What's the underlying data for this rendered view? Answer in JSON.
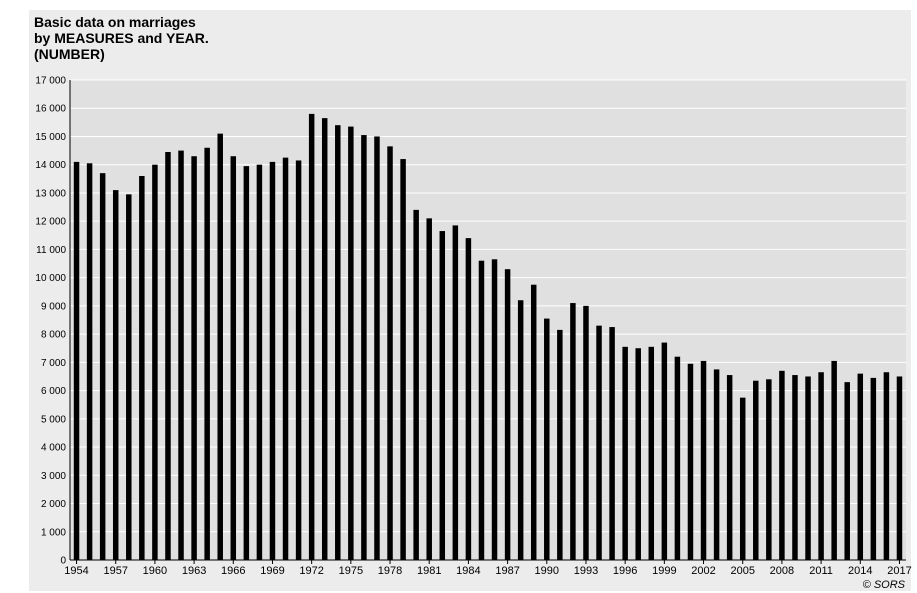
{
  "title_lines": [
    "Basic data on marriages",
    "by MEASURES and YEAR.",
    "(NUMBER)"
  ],
  "credit": "© SORS",
  "chart_data": {
    "type": "bar",
    "title": "Basic data on marriages by MEASURES and YEAR. (NUMBER)",
    "xlabel": "",
    "ylabel": "",
    "ylim": [
      0,
      17000
    ],
    "y_ticks": [
      0,
      1000,
      2000,
      3000,
      4000,
      5000,
      6000,
      7000,
      8000,
      9000,
      10000,
      11000,
      12000,
      13000,
      14000,
      15000,
      16000,
      17000
    ],
    "y_tick_labels": [
      "0",
      "1 000",
      "2 000",
      "3 000",
      "4 000",
      "5 000",
      "6 000",
      "7 000",
      "8 000",
      "9 000",
      "10 000",
      "11 000",
      "12 000",
      "13 000",
      "14 000",
      "15 000",
      "16 000",
      "17 000"
    ],
    "x_tick_labels": [
      "1954",
      "1957",
      "1960",
      "1963",
      "1966",
      "1969",
      "1972",
      "1975",
      "1978",
      "1981",
      "1984",
      "1987",
      "1990",
      "1993",
      "1996",
      "1999",
      "2002",
      "2005",
      "2008",
      "2011",
      "2014",
      "2017"
    ],
    "grid": true,
    "bar_color": "#000000",
    "plot_background": "#e0e0e0",
    "categories": [
      "1954",
      "1955",
      "1956",
      "1957",
      "1958",
      "1959",
      "1960",
      "1961",
      "1962",
      "1963",
      "1964",
      "1965",
      "1966",
      "1967",
      "1968",
      "1969",
      "1970",
      "1971",
      "1972",
      "1973",
      "1974",
      "1975",
      "1976",
      "1977",
      "1978",
      "1979",
      "1980",
      "1981",
      "1982",
      "1983",
      "1984",
      "1985",
      "1986",
      "1987",
      "1988",
      "1989",
      "1990",
      "1991",
      "1992",
      "1993",
      "1994",
      "1995",
      "1996",
      "1997",
      "1998",
      "1999",
      "2000",
      "2001",
      "2002",
      "2003",
      "2004",
      "2005",
      "2006",
      "2007",
      "2008",
      "2009",
      "2010",
      "2011",
      "2012",
      "2013",
      "2014",
      "2015",
      "2016",
      "2017"
    ],
    "values": [
      14100,
      14050,
      13700,
      13100,
      12950,
      13600,
      14000,
      14450,
      14500,
      14300,
      14600,
      15100,
      14300,
      13950,
      14000,
      14100,
      14250,
      14150,
      15800,
      15650,
      15400,
      15350,
      15050,
      15000,
      14650,
      14200,
      12400,
      12100,
      11650,
      11850,
      11400,
      10600,
      10650,
      10300,
      9200,
      9750,
      8550,
      8150,
      9100,
      9000,
      8300,
      8250,
      7550,
      7500,
      7550,
      7700,
      7200,
      6950,
      7050,
      6750,
      6550,
      5750,
      6350,
      6400,
      6700,
      6550,
      6500,
      6650,
      7050,
      6300,
      6600,
      6450,
      6650,
      6500
    ]
  }
}
